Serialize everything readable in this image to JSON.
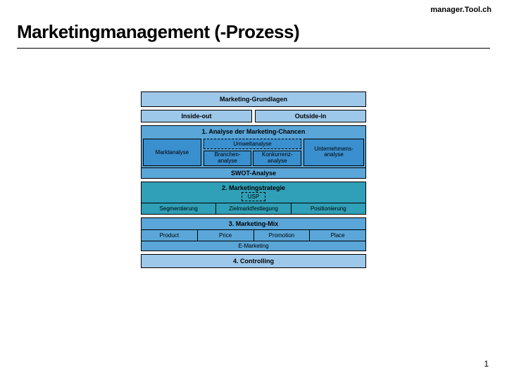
{
  "brand": "manager.Tool.ch",
  "title": "Marketingmanagement (-Prozess)",
  "page_number": "1",
  "colors": {
    "bg_light": "#9dc8ea",
    "bg_mid1": "#5aa6d8",
    "bg_mid2": "#3a8fcf",
    "bg_dark": "#1e78c0",
    "bg_teal": "#2fa0b8",
    "border": "#000000",
    "white": "#ffffff"
  },
  "rows": {
    "grundlagen": "Marketing-Grundlagen",
    "inside_out": "Inside-out",
    "outside_in": "Outside-in",
    "analyse_title": "1. Analyse der Marketing-Chancen",
    "marktanalyse": "Marktanalyse",
    "umweltanalyse": "Umweltanalyse",
    "branchen": "Branchen-\nanalyse",
    "konkurrenz": "Konkurrenz-\nanalyse",
    "unternehmens": "Unternehmens-\nanalyse",
    "swot": "SWOT-Analyse",
    "strategie_title": "2. Marketingstrategie",
    "usp": "USP",
    "segmentierung": "Segmentierung",
    "zielmarkt": "Zielmarktfestlegung",
    "positionierung": "Positionierung",
    "mix_title": "3. Marketing-Mix",
    "product": "Product",
    "price": "Price",
    "promotion": "Promotion",
    "place": "Place",
    "emarketing": "E-Marketing",
    "controlling": "4. Controlling"
  }
}
